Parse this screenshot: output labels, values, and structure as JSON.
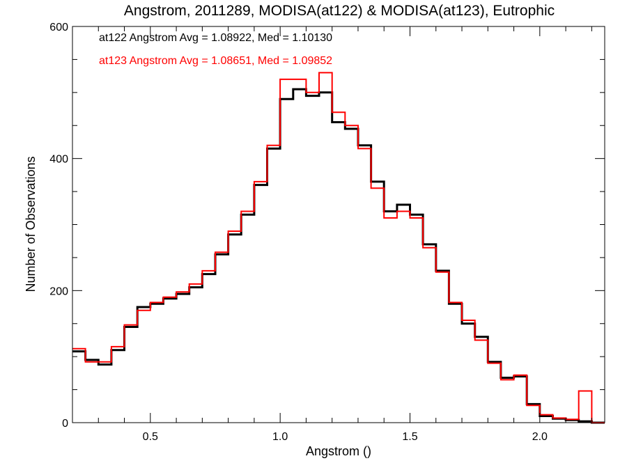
{
  "chart_data": {
    "type": "line",
    "title": "Angstrom, 2011289, MODISA(at122) & MODISA(at123), Eutrophic",
    "xlabel": "Angstrom ()",
    "ylabel": "Number of Observations",
    "xlim": [
      0.2,
      2.25
    ],
    "ylim": [
      0,
      600
    ],
    "xticks": [
      0.5,
      1.0,
      1.5,
      2.0
    ],
    "xtick_labels": [
      "0.5",
      "1.0",
      "1.5",
      "2.0"
    ],
    "yticks": [
      0,
      200,
      400,
      600
    ],
    "ytick_labels": [
      "0",
      "200",
      "400",
      "600"
    ],
    "grid": false,
    "annotations": [
      {
        "text": "at122 Angstrom Avg = 1.08922, Med = 1.10130",
        "color": "#000000"
      },
      {
        "text": "at123 Angstrom Avg = 1.08651, Med = 1.09852",
        "color": "#ff0000"
      }
    ],
    "series": [
      {
        "color": "#000000",
        "x": [
          0.2,
          0.25,
          0.3,
          0.35,
          0.4,
          0.45,
          0.5,
          0.55,
          0.6,
          0.65,
          0.7,
          0.75,
          0.8,
          0.85,
          0.9,
          0.95,
          1.0,
          1.05,
          1.1,
          1.15,
          1.2,
          1.25,
          1.3,
          1.35,
          1.4,
          1.45,
          1.5,
          1.55,
          1.6,
          1.65,
          1.7,
          1.75,
          1.8,
          1.85,
          1.9,
          1.95,
          2.0,
          2.05,
          2.1,
          2.15,
          2.2,
          2.25
        ],
        "y": [
          108,
          95,
          88,
          110,
          145,
          175,
          180,
          188,
          195,
          205,
          225,
          255,
          285,
          315,
          360,
          415,
          490,
          505,
          495,
          500,
          455,
          445,
          420,
          365,
          320,
          330,
          315,
          270,
          230,
          180,
          150,
          130,
          92,
          68,
          70,
          28,
          10,
          6,
          4,
          2,
          0,
          0
        ]
      },
      {
        "color": "#ff0000",
        "x": [
          0.2,
          0.25,
          0.3,
          0.35,
          0.4,
          0.45,
          0.5,
          0.55,
          0.6,
          0.65,
          0.7,
          0.75,
          0.8,
          0.85,
          0.9,
          0.95,
          1.0,
          1.05,
          1.1,
          1.15,
          1.2,
          1.25,
          1.3,
          1.35,
          1.4,
          1.45,
          1.5,
          1.55,
          1.6,
          1.65,
          1.7,
          1.75,
          1.8,
          1.85,
          1.9,
          1.95,
          2.0,
          2.05,
          2.1,
          2.15,
          2.2,
          2.25
        ],
        "y": [
          112,
          92,
          92,
          115,
          148,
          170,
          182,
          190,
          198,
          210,
          230,
          258,
          290,
          320,
          365,
          420,
          520,
          520,
          500,
          530,
          470,
          450,
          415,
          355,
          310,
          320,
          310,
          265,
          228,
          182,
          155,
          125,
          90,
          65,
          72,
          26,
          12,
          7,
          5,
          48,
          0,
          0
        ]
      }
    ]
  }
}
